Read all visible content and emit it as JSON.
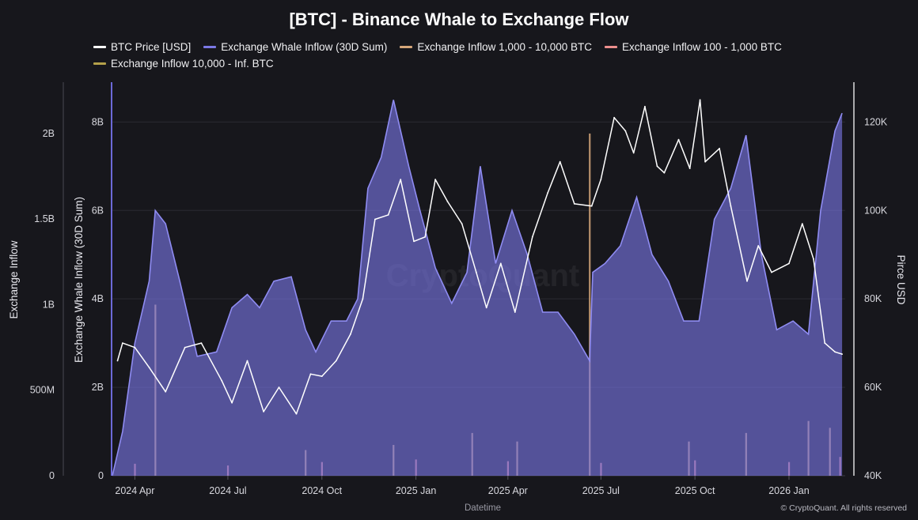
{
  "chart_data": {
    "type": "area",
    "title": "[BTC] - Binance Whale to Exchange Flow",
    "xlabel": "Datetime",
    "ylabel_left_outer": "Exchange Inflow",
    "ylabel_left_inner": "Exchange Whale Inflow (30D Sum)",
    "ylabel_right": "Pirce USD",
    "legend_position": "top",
    "grid": true,
    "x_range": [
      "2024-03-10",
      "2026-02-25"
    ],
    "x_ticks": [
      "2024 Apr",
      "2024 Jul",
      "2024 Oct",
      "2025 Jan",
      "2025 Apr",
      "2025 Jul",
      "2025 Oct",
      "2026 Jan"
    ],
    "axes": {
      "inflow": {
        "ticks": [
          "0",
          "500M",
          "1B",
          "1.5B",
          "2B"
        ],
        "range": [
          0,
          2300000000
        ]
      },
      "whale_30d": {
        "ticks": [
          "0",
          "2B",
          "4B",
          "6B",
          "8B"
        ],
        "range": [
          0,
          8900000000
        ]
      },
      "price": {
        "ticks": [
          "40K",
          "60K",
          "80K",
          "100K",
          "120K"
        ],
        "range": [
          40000,
          129000
        ]
      }
    },
    "series": [
      {
        "name": "BTC Price [USD]",
        "axis": "price",
        "color": "#ffffff",
        "points": [
          [
            "2024-03-15",
            66000
          ],
          [
            "2024-03-20",
            70000
          ],
          [
            "2024-04-01",
            69000
          ],
          [
            "2024-04-15",
            64500
          ],
          [
            "2024-05-01",
            59000
          ],
          [
            "2024-05-20",
            69000
          ],
          [
            "2024-06-05",
            70000
          ],
          [
            "2024-06-25",
            61500
          ],
          [
            "2024-07-05",
            56500
          ],
          [
            "2024-07-20",
            66000
          ],
          [
            "2024-08-05",
            54500
          ],
          [
            "2024-08-20",
            60000
          ],
          [
            "2024-09-06",
            54000
          ],
          [
            "2024-09-20",
            63000
          ],
          [
            "2024-10-01",
            62500
          ],
          [
            "2024-10-15",
            66000
          ],
          [
            "2024-10-29",
            72000
          ],
          [
            "2024-11-10",
            80000
          ],
          [
            "2024-11-22",
            98000
          ],
          [
            "2024-12-05",
            99000
          ],
          [
            "2024-12-17",
            107000
          ],
          [
            "2024-12-30",
            93000
          ],
          [
            "2025-01-10",
            94000
          ],
          [
            "2025-01-20",
            107000
          ],
          [
            "2025-02-01",
            102000
          ],
          [
            "2025-02-15",
            97000
          ],
          [
            "2025-03-01",
            86000
          ],
          [
            "2025-03-11",
            78000
          ],
          [
            "2025-03-25",
            88000
          ],
          [
            "2025-04-08",
            77000
          ],
          [
            "2025-04-25",
            94000
          ],
          [
            "2025-05-10",
            104000
          ],
          [
            "2025-05-22",
            111000
          ],
          [
            "2025-06-05",
            101500
          ],
          [
            "2025-06-22",
            101000
          ],
          [
            "2025-07-01",
            107000
          ],
          [
            "2025-07-14",
            121000
          ],
          [
            "2025-07-25",
            118000
          ],
          [
            "2025-08-02",
            113000
          ],
          [
            "2025-08-13",
            123500
          ],
          [
            "2025-08-25",
            110000
          ],
          [
            "2025-09-01",
            108500
          ],
          [
            "2025-09-15",
            116000
          ],
          [
            "2025-09-26",
            109500
          ],
          [
            "2025-10-06",
            125000
          ],
          [
            "2025-10-11",
            111000
          ],
          [
            "2025-10-25",
            114000
          ],
          [
            "2025-11-05",
            101000
          ],
          [
            "2025-11-21",
            84000
          ],
          [
            "2025-12-02",
            92000
          ],
          [
            "2025-12-15",
            86000
          ],
          [
            "2026-01-01",
            88000
          ],
          [
            "2026-01-14",
            97000
          ],
          [
            "2026-01-25",
            89000
          ],
          [
            "2026-02-05",
            70000
          ],
          [
            "2026-02-15",
            68000
          ],
          [
            "2026-02-22",
            67500
          ]
        ]
      },
      {
        "name": "Exchange Whale Inflow (30D Sum)",
        "axis": "whale_30d",
        "color": "#7b78e6",
        "points": [
          [
            "2024-03-10",
            0
          ],
          [
            "2024-03-20",
            1000000000
          ],
          [
            "2024-04-01",
            3000000000
          ],
          [
            "2024-04-15",
            4400000000
          ],
          [
            "2024-04-21",
            6000000000
          ],
          [
            "2024-05-01",
            5700000000
          ],
          [
            "2024-05-15",
            4400000000
          ],
          [
            "2024-06-01",
            2700000000
          ],
          [
            "2024-06-20",
            2800000000
          ],
          [
            "2024-07-05",
            3800000000
          ],
          [
            "2024-07-20",
            4100000000
          ],
          [
            "2024-08-01",
            3800000000
          ],
          [
            "2024-08-15",
            4400000000
          ],
          [
            "2024-09-01",
            4500000000
          ],
          [
            "2024-09-15",
            3300000000
          ],
          [
            "2024-09-25",
            2800000000
          ],
          [
            "2024-10-10",
            3500000000
          ],
          [
            "2024-10-25",
            3500000000
          ],
          [
            "2024-11-05",
            4000000000
          ],
          [
            "2024-11-15",
            6500000000
          ],
          [
            "2024-11-28",
            7200000000
          ],
          [
            "2024-12-10",
            8500000000
          ],
          [
            "2024-12-25",
            7000000000
          ],
          [
            "2025-01-05",
            6000000000
          ],
          [
            "2025-01-20",
            4700000000
          ],
          [
            "2025-02-05",
            3900000000
          ],
          [
            "2025-02-20",
            4600000000
          ],
          [
            "2025-03-05",
            7000000000
          ],
          [
            "2025-03-20",
            4800000000
          ],
          [
            "2025-04-05",
            6000000000
          ],
          [
            "2025-04-20",
            5000000000
          ],
          [
            "2025-05-05",
            3700000000
          ],
          [
            "2025-05-20",
            3700000000
          ],
          [
            "2025-06-05",
            3200000000
          ],
          [
            "2025-06-20",
            2600000000
          ],
          [
            "2025-06-23",
            4600000000
          ],
          [
            "2025-07-05",
            4800000000
          ],
          [
            "2025-07-20",
            5200000000
          ],
          [
            "2025-08-05",
            6300000000
          ],
          [
            "2025-08-20",
            5000000000
          ],
          [
            "2025-09-05",
            4400000000
          ],
          [
            "2025-09-20",
            3500000000
          ],
          [
            "2025-10-05",
            3500000000
          ],
          [
            "2025-10-20",
            5800000000
          ],
          [
            "2025-11-05",
            6500000000
          ],
          [
            "2025-11-20",
            7700000000
          ],
          [
            "2025-12-05",
            5000000000
          ],
          [
            "2025-12-20",
            3300000000
          ],
          [
            "2026-01-05",
            3500000000
          ],
          [
            "2026-01-20",
            3200000000
          ],
          [
            "2026-02-01",
            6000000000
          ],
          [
            "2026-02-15",
            7800000000
          ],
          [
            "2026-02-22",
            8200000000
          ]
        ]
      },
      {
        "name": "Exchange Inflow 1,000 - 10,000 BTC",
        "axis": "inflow",
        "color": "#d6a77a",
        "points": [
          [
            "2024-04-21",
            1000000000
          ],
          [
            "2024-09-15",
            150000000
          ],
          [
            "2024-12-10",
            180000000
          ],
          [
            "2025-02-25",
            250000000
          ],
          [
            "2025-04-10",
            200000000
          ],
          [
            "2025-06-20",
            2000000000
          ],
          [
            "2025-09-25",
            200000000
          ],
          [
            "2025-11-20",
            250000000
          ],
          [
            "2026-01-20",
            320000000
          ],
          [
            "2026-02-10",
            280000000
          ]
        ]
      },
      {
        "name": "Exchange Inflow 100 - 1,000 BTC",
        "axis": "inflow",
        "color": "#ec8f8d",
        "points": [
          [
            "2024-04-01",
            70000000
          ],
          [
            "2024-07-01",
            60000000
          ],
          [
            "2024-10-01",
            80000000
          ],
          [
            "2025-01-01",
            95000000
          ],
          [
            "2025-04-01",
            85000000
          ],
          [
            "2025-07-01",
            75000000
          ],
          [
            "2025-10-01",
            90000000
          ],
          [
            "2026-01-01",
            80000000
          ],
          [
            "2026-02-20",
            110000000
          ]
        ]
      },
      {
        "name": "Exchange Inflow 10,000 - Inf. BTC",
        "axis": "inflow",
        "color": "#b5a14a",
        "points": []
      }
    ],
    "credit": "© CryptoQuant. All rights reserved",
    "watermark": "CryptoQuant"
  }
}
